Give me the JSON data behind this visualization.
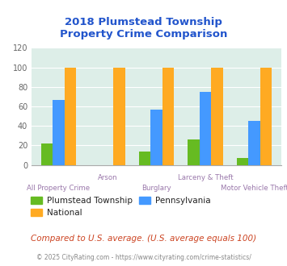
{
  "title": "2018 Plumstead Township\nProperty Crime Comparison",
  "categories": [
    "All Property Crime",
    "Arson",
    "Burglary",
    "Larceny & Theft",
    "Motor Vehicle Theft"
  ],
  "plumstead": [
    22,
    0,
    14,
    26,
    7
  ],
  "pennsylvania": [
    67,
    0,
    57,
    75,
    45
  ],
  "national": [
    100,
    100,
    100,
    100,
    100
  ],
  "color_plumstead": "#66bb22",
  "color_pennsylvania": "#4499ff",
  "color_national": "#ffaa22",
  "ylim": [
    0,
    120
  ],
  "yticks": [
    0,
    20,
    40,
    60,
    80,
    100,
    120
  ],
  "bg_color": "#ddeee8",
  "title_color": "#2255cc",
  "xlabel_color": "#9977aa",
  "legend_label_plumstead": "Plumstead Township",
  "legend_label_national": "National",
  "legend_label_pennsylvania": "Pennsylvania",
  "footnote1": "Compared to U.S. average. (U.S. average equals 100)",
  "footnote2": "© 2025 CityRating.com - https://www.cityrating.com/crime-statistics/",
  "footnote1_color": "#cc4422",
  "footnote2_color": "#888888",
  "bar_order": [
    "plumstead",
    "pennsylvania",
    "national"
  ],
  "label_rows": [
    1,
    0,
    1,
    0,
    1
  ]
}
